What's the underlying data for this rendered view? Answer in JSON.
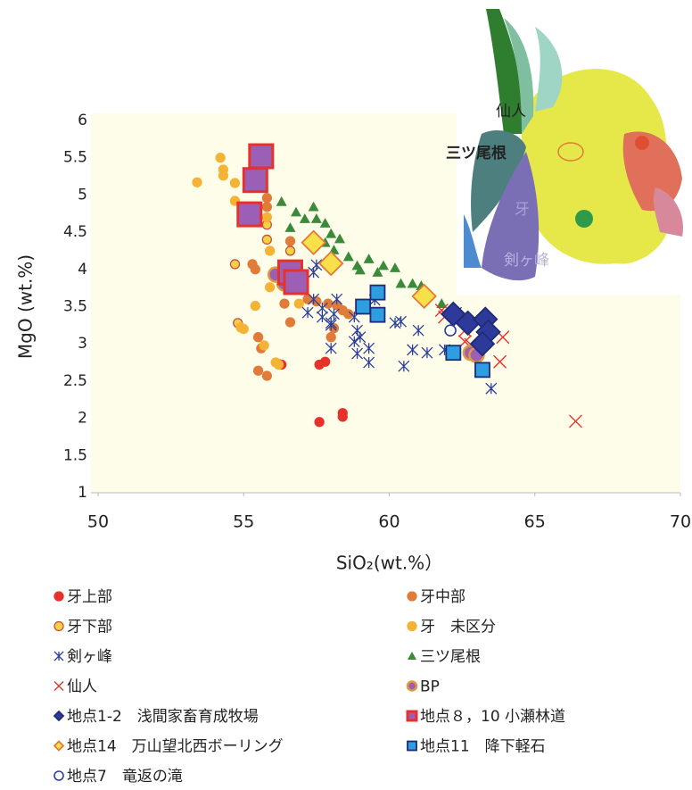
{
  "chart_data": {
    "type": "scatter",
    "xlabel": "SiO₂(wt.%）",
    "ylabel": "MgO (wt.%)",
    "xlim": [
      50,
      70
    ],
    "xticks": [
      50,
      55,
      60,
      65,
      70
    ],
    "ylim": [
      1,
      6
    ],
    "yticks": [
      1,
      1.5,
      2,
      2.5,
      3,
      3.5,
      4,
      4.5,
      5,
      5.5,
      6
    ],
    "background": "#fdfdea",
    "series": [
      {
        "name": "牙上部",
        "marker": "circle",
        "color": "#e8312a",
        "edge": "#e8312a",
        "x": [
          56.3,
          57.6,
          57.8,
          57.6,
          58.4,
          58.4
        ],
        "values": [
          2.72,
          2.72,
          2.76,
          1.95,
          2.07,
          2.02
        ]
      },
      {
        "name": "牙中部",
        "marker": "circle",
        "color": "#e07b39",
        "edge": "#e07b39",
        "x": [
          55.3,
          55.4,
          55.8,
          55.8,
          55.5,
          55.6,
          55.8,
          55.5,
          56.6,
          56.6,
          56.4,
          57.2,
          57.5,
          57.9,
          58.0,
          58.1,
          58.4,
          58.2,
          58.6,
          57.0
        ],
        "values": [
          4.07,
          4.0,
          4.96,
          4.84,
          3.09,
          2.94,
          2.57,
          2.64,
          4.38,
          3.29,
          3.54,
          3.6,
          3.57,
          3.54,
          3.09,
          3.21,
          3.45,
          3.52,
          3.4,
          3.72
        ]
      },
      {
        "name": "牙下部",
        "marker": "circle",
        "color": "#f7d23e",
        "edge": "#c0504d",
        "x": [
          54.7,
          54.8,
          55.8,
          56.2,
          55.8,
          56.6,
          56.2
        ],
        "values": [
          4.07,
          3.28,
          4.4,
          2.73,
          4.6,
          4.25,
          3.96
        ]
      },
      {
        "name": "牙　未区分",
        "marker": "circle",
        "color": "#f5b335",
        "edge": "#f5b335",
        "x": [
          53.4,
          54.2,
          54.3,
          54.3,
          54.7,
          54.7,
          55.0,
          55.8,
          55.9,
          55.0,
          54.9,
          55.7,
          55.4,
          56.1,
          56.2,
          55.9,
          56.9
        ],
        "values": [
          5.17,
          5.5,
          5.34,
          5.26,
          4.92,
          5.16,
          4.81,
          4.7,
          3.76,
          3.2,
          3.22,
          2.98,
          3.51,
          2.75,
          2.72,
          4.25,
          3.54
        ]
      },
      {
        "name": "剣ヶ峰",
        "marker": "asterisk",
        "color": "#2e3f9a",
        "edge": "#2e3f9a",
        "x": [
          57.4,
          57.5,
          57.4,
          57.7,
          58.0,
          58.1,
          58.2,
          57.7,
          58.8,
          58.9,
          59.0,
          58.9,
          59.3,
          59.3,
          58.8,
          59.5,
          60.2,
          60.4,
          60.8,
          61.0,
          60.5,
          61.3,
          61.9,
          63.5,
          62.3,
          57.2,
          58.0,
          58.0
        ],
        "values": [
          3.96,
          4.06,
          3.6,
          3.36,
          3.28,
          3.4,
          3.6,
          3.48,
          3.36,
          3.18,
          3.09,
          2.87,
          2.94,
          2.75,
          3.03,
          3.59,
          3.28,
          3.3,
          2.92,
          3.18,
          2.7,
          2.88,
          2.92,
          2.4,
          3.42,
          3.42,
          2.94,
          3.25
        ]
      },
      {
        "name": "三ツ尾根",
        "marker": "triangle",
        "color": "#3a8a3a",
        "edge": "#3a8a3a",
        "x": [
          56.3,
          56.6,
          56.8,
          57.1,
          57.4,
          57.5,
          57.8,
          58.0,
          58.3,
          58.1,
          58.6,
          58.9,
          59.3,
          59.8,
          60.2,
          59.6,
          60.4,
          60.8,
          61.1,
          61.8,
          59.0,
          57.8
        ],
        "values": [
          4.91,
          4.56,
          4.77,
          4.68,
          4.84,
          4.68,
          4.62,
          4.48,
          4.41,
          4.26,
          4.17,
          4.05,
          4.14,
          4.05,
          4.02,
          3.96,
          3.81,
          3.81,
          3.78,
          3.54,
          3.99,
          4.36
        ]
      },
      {
        "name": "仙人",
        "marker": "x",
        "color": "#e8312a",
        "edge": "#e8312a",
        "x": [
          66.4,
          63.8,
          63.9,
          62.6,
          62.3,
          61.8,
          61.9,
          62.6,
          62.8
        ],
        "values": [
          1.96,
          2.76,
          3.09,
          3.18,
          3.33,
          3.45,
          3.36,
          3.03,
          2.99
        ]
      },
      {
        "name": "BP",
        "marker": "circle",
        "color": "#9b5fb5",
        "edge": "#e09a3a",
        "x": [
          62.8,
          63.0,
          56.1,
          56.4
        ],
        "values": [
          2.88,
          2.85,
          3.93,
          3.81
        ]
      },
      {
        "name": "地点1-2　浅間家畜育成牧場",
        "marker": "diamond",
        "color": "#2e3a9a",
        "edge": "#1f2a78",
        "x": [
          62.2,
          62.7,
          63.3,
          63.4,
          63.2
        ],
        "values": [
          3.4,
          3.28,
          3.33,
          3.16,
          3.0
        ]
      },
      {
        "name": "地点８，10 小瀬林道",
        "marker": "square",
        "color": "#9b5fb5",
        "edge": "#e8312a",
        "x": [
          55.6,
          55.4,
          55.2,
          56.6,
          56.8
        ],
        "values": [
          5.52,
          5.2,
          4.74,
          3.96,
          3.83
        ]
      },
      {
        "name": "地点14　万山望北西ボーリング",
        "marker": "diamond",
        "color": "#f7e04a",
        "edge": "#e07b39",
        "x": [
          57.4,
          58.0,
          61.2
        ],
        "values": [
          4.36,
          4.08,
          3.64
        ]
      },
      {
        "name": "地点11　降下軽石",
        "marker": "square",
        "color": "#2e9ee0",
        "edge": "#1f2a78",
        "x": [
          59.6,
          59.1,
          59.6,
          62.2,
          63.2
        ],
        "values": [
          3.69,
          3.5,
          3.39,
          2.88,
          2.65
        ]
      },
      {
        "name": "地点7　竜返の滝",
        "marker": "open-circle",
        "color": "#ffffff",
        "edge": "#2e3f9a",
        "x": [
          62.1
        ],
        "values": [
          3.18
        ]
      }
    ]
  },
  "inset_map": {
    "labels": [
      "仙人",
      "三ツ尾根",
      "牙",
      "剣ヶ峰"
    ]
  }
}
